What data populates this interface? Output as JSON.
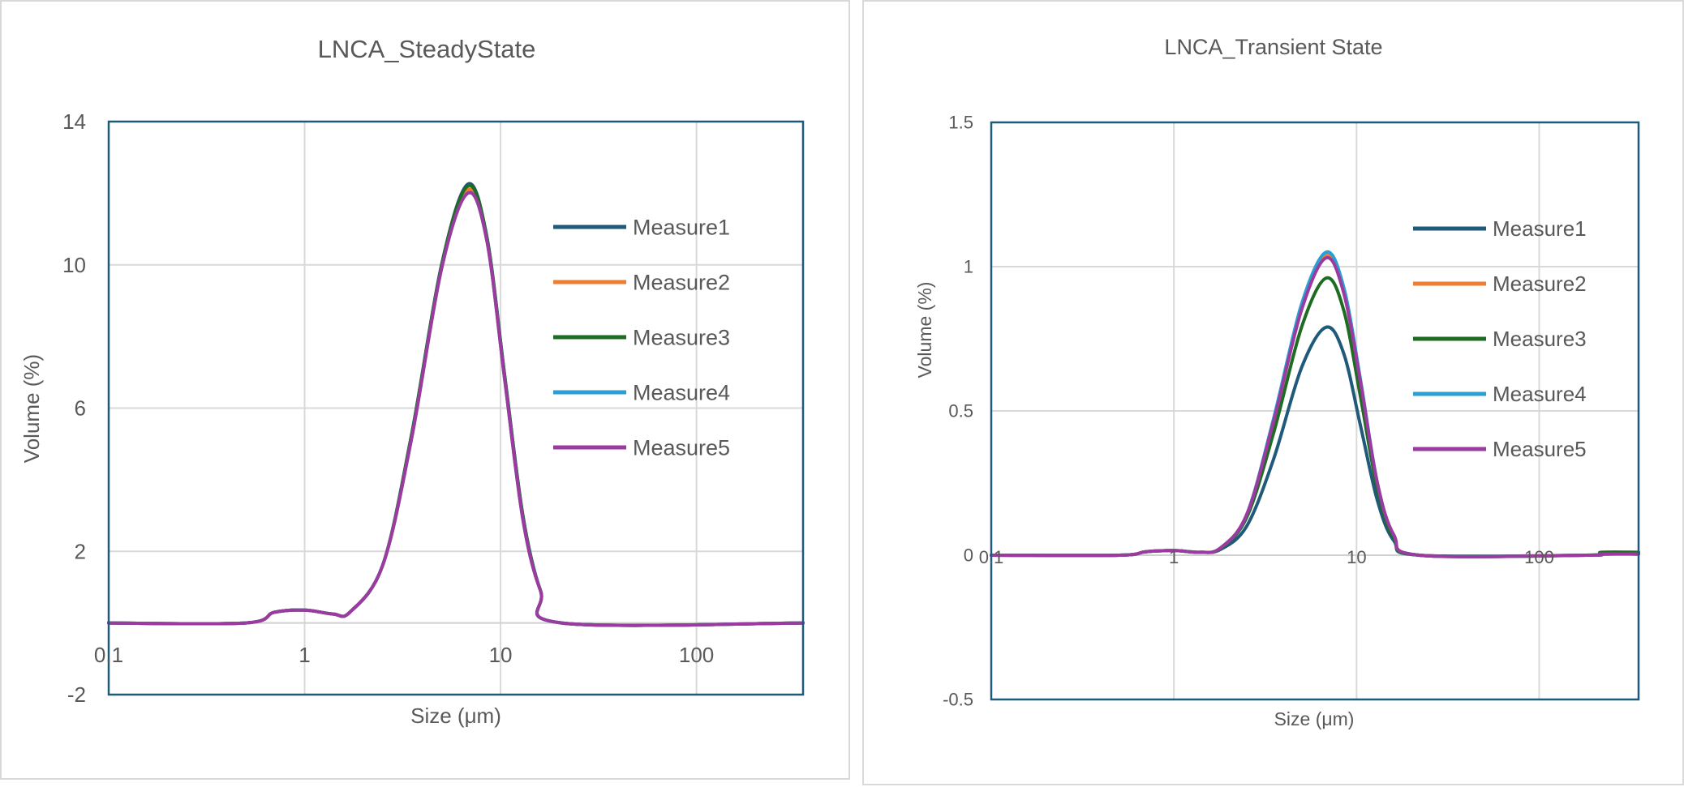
{
  "chart_data": [
    {
      "type": "line",
      "title": "LNCA_SteadyState",
      "xlabel": "Size (μm)",
      "ylabel": "Volume (%)",
      "x_scale": "log",
      "xlim": [
        0.1,
        350
      ],
      "ylim": [
        -2,
        14
      ],
      "y_ticks": [
        "14",
        "10",
        "6",
        "2",
        "-2"
      ],
      "x_ticks": [
        "0.1",
        "1",
        "10",
        "100"
      ],
      "grid": true,
      "legend_position": "right-inside",
      "series": [
        {
          "name": "Measure1",
          "color": "#1f5a7a",
          "values": [
            [
              0.1,
              0
            ],
            [
              0.5,
              0
            ],
            [
              0.7,
              0.3
            ],
            [
              1.0,
              0.36
            ],
            [
              1.4,
              0.25
            ],
            [
              1.7,
              0.3
            ],
            [
              2.5,
              1.6
            ],
            [
              3.5,
              5.2
            ],
            [
              5.0,
              10.0
            ],
            [
              6.8,
              12.25
            ],
            [
              8.5,
              10.8
            ],
            [
              10.5,
              6.9
            ],
            [
              13.0,
              3.0
            ],
            [
              16.0,
              0.9
            ],
            [
              20.5,
              0
            ],
            [
              350,
              0
            ]
          ]
        },
        {
          "name": "Measure2",
          "color": "#ed7d31",
          "values": [
            [
              0.1,
              0
            ],
            [
              0.5,
              0
            ],
            [
              0.7,
              0.3
            ],
            [
              1.0,
              0.36
            ],
            [
              1.4,
              0.25
            ],
            [
              1.7,
              0.3
            ],
            [
              2.5,
              1.6
            ],
            [
              3.5,
              5.1
            ],
            [
              5.0,
              9.9
            ],
            [
              6.8,
              12.1
            ],
            [
              8.5,
              10.7
            ],
            [
              10.5,
              6.8
            ],
            [
              13.0,
              2.9
            ],
            [
              16.0,
              0.9
            ],
            [
              20.5,
              0
            ],
            [
              350,
              0
            ]
          ]
        },
        {
          "name": "Measure3",
          "color": "#1e6b22",
          "values": [
            [
              0.1,
              0
            ],
            [
              0.5,
              0
            ],
            [
              0.7,
              0.3
            ],
            [
              1.0,
              0.36
            ],
            [
              1.4,
              0.25
            ],
            [
              1.7,
              0.3
            ],
            [
              2.5,
              1.6
            ],
            [
              3.5,
              5.2
            ],
            [
              5.0,
              10.0
            ],
            [
              6.8,
              12.2
            ],
            [
              8.5,
              10.8
            ],
            [
              10.5,
              6.9
            ],
            [
              13.0,
              3.0
            ],
            [
              16.0,
              0.9
            ],
            [
              20.5,
              0
            ],
            [
              350,
              0
            ]
          ]
        },
        {
          "name": "Measure4",
          "color": "#2b9fd4",
          "values": [
            [
              0.1,
              0
            ],
            [
              0.5,
              0
            ],
            [
              0.7,
              0.3
            ],
            [
              1.0,
              0.36
            ],
            [
              1.4,
              0.25
            ],
            [
              1.7,
              0.3
            ],
            [
              2.5,
              1.6
            ],
            [
              3.5,
              5.1
            ],
            [
              5.0,
              9.9
            ],
            [
              6.8,
              12.0
            ],
            [
              8.5,
              10.7
            ],
            [
              10.5,
              6.8
            ],
            [
              13.0,
              2.9
            ],
            [
              16.0,
              0.9
            ],
            [
              20.5,
              0
            ],
            [
              350,
              0
            ]
          ]
        },
        {
          "name": "Measure5",
          "color": "#9b3a9f",
          "values": [
            [
              0.1,
              0
            ],
            [
              0.5,
              0
            ],
            [
              0.7,
              0.3
            ],
            [
              1.0,
              0.36
            ],
            [
              1.4,
              0.25
            ],
            [
              1.7,
              0.3
            ],
            [
              2.5,
              1.6
            ],
            [
              3.5,
              5.1
            ],
            [
              5.0,
              9.9
            ],
            [
              6.8,
              12.0
            ],
            [
              8.5,
              10.7
            ],
            [
              10.5,
              6.8
            ],
            [
              13.0,
              2.9
            ],
            [
              16.0,
              0.9
            ],
            [
              20.5,
              0
            ],
            [
              350,
              0
            ]
          ]
        }
      ]
    },
    {
      "type": "line",
      "title": "LNCA_Transient State",
      "xlabel": "Size (μm)",
      "ylabel": "Volume (%)",
      "x_scale": "log",
      "xlim": [
        0.1,
        350
      ],
      "ylim": [
        -0.5,
        1.5
      ],
      "y_ticks": [
        "1.5",
        "1",
        "0.5",
        "0",
        "-0.5"
      ],
      "x_ticks": [
        "0.1",
        "1",
        "10",
        "100"
      ],
      "grid": true,
      "legend_position": "right-inside",
      "series": [
        {
          "name": "Measure1",
          "color": "#1f5a7a",
          "values": [
            [
              0.1,
              0
            ],
            [
              0.5,
              0
            ],
            [
              0.7,
              0.012
            ],
            [
              1.0,
              0.016
            ],
            [
              1.4,
              0.01
            ],
            [
              1.8,
              0.02
            ],
            [
              2.5,
              0.1
            ],
            [
              3.5,
              0.33
            ],
            [
              5.0,
              0.65
            ],
            [
              6.8,
              0.79
            ],
            [
              8.5,
              0.7
            ],
            [
              10.5,
              0.45
            ],
            [
              13.0,
              0.19
            ],
            [
              16.0,
              0.05
            ],
            [
              22,
              0
            ],
            [
              180,
              0
            ],
            [
              220,
              0.004
            ],
            [
              350,
              0.004
            ]
          ]
        },
        {
          "name": "Measure2",
          "color": "#ed7d31",
          "values": [
            [
              0.1,
              0
            ],
            [
              0.5,
              0
            ],
            [
              0.7,
              0.012
            ],
            [
              1.0,
              0.016
            ],
            [
              1.4,
              0.01
            ],
            [
              1.8,
              0.025
            ],
            [
              2.5,
              0.14
            ],
            [
              3.5,
              0.46
            ],
            [
              5.0,
              0.86
            ],
            [
              6.8,
              1.04
            ],
            [
              8.5,
              0.92
            ],
            [
              10.5,
              0.6
            ],
            [
              13.0,
              0.25
            ],
            [
              16.0,
              0.07
            ],
            [
              22,
              0
            ],
            [
              180,
              0
            ],
            [
              220,
              0.004
            ],
            [
              350,
              0.004
            ]
          ]
        },
        {
          "name": "Measure3",
          "color": "#1e6b22",
          "values": [
            [
              0.1,
              0
            ],
            [
              0.5,
              0
            ],
            [
              0.7,
              0.012
            ],
            [
              1.0,
              0.016
            ],
            [
              1.4,
              0.01
            ],
            [
              1.8,
              0.023
            ],
            [
              2.5,
              0.13
            ],
            [
              3.5,
              0.42
            ],
            [
              5.0,
              0.79
            ],
            [
              6.8,
              0.96
            ],
            [
              8.5,
              0.85
            ],
            [
              10.5,
              0.55
            ],
            [
              13.0,
              0.23
            ],
            [
              16.0,
              0.06
            ],
            [
              22,
              0
            ],
            [
              180,
              0
            ],
            [
              220,
              0.01
            ],
            [
              350,
              0.01
            ]
          ]
        },
        {
          "name": "Measure4",
          "color": "#2b9fd4",
          "values": [
            [
              0.1,
              0
            ],
            [
              0.5,
              0
            ],
            [
              0.7,
              0.012
            ],
            [
              1.0,
              0.016
            ],
            [
              1.4,
              0.01
            ],
            [
              1.8,
              0.025
            ],
            [
              2.5,
              0.14
            ],
            [
              3.5,
              0.47
            ],
            [
              5.0,
              0.87
            ],
            [
              6.8,
              1.05
            ],
            [
              8.5,
              0.93
            ],
            [
              10.5,
              0.61
            ],
            [
              13.0,
              0.25
            ],
            [
              16.0,
              0.07
            ],
            [
              22,
              0
            ],
            [
              180,
              0
            ],
            [
              220,
              0.004
            ],
            [
              350,
              0.004
            ]
          ]
        },
        {
          "name": "Measure5",
          "color": "#9b3a9f",
          "values": [
            [
              0.1,
              0
            ],
            [
              0.5,
              0
            ],
            [
              0.7,
              0.012
            ],
            [
              1.0,
              0.016
            ],
            [
              1.4,
              0.01
            ],
            [
              1.8,
              0.025
            ],
            [
              2.5,
              0.14
            ],
            [
              3.5,
              0.46
            ],
            [
              5.0,
              0.85
            ],
            [
              6.8,
              1.03
            ],
            [
              8.5,
              0.91
            ],
            [
              10.5,
              0.6
            ],
            [
              13.0,
              0.25
            ],
            [
              16.0,
              0.07
            ],
            [
              22,
              0
            ],
            [
              180,
              0
            ],
            [
              220,
              0.004
            ],
            [
              350,
              0.004
            ]
          ]
        }
      ]
    }
  ]
}
